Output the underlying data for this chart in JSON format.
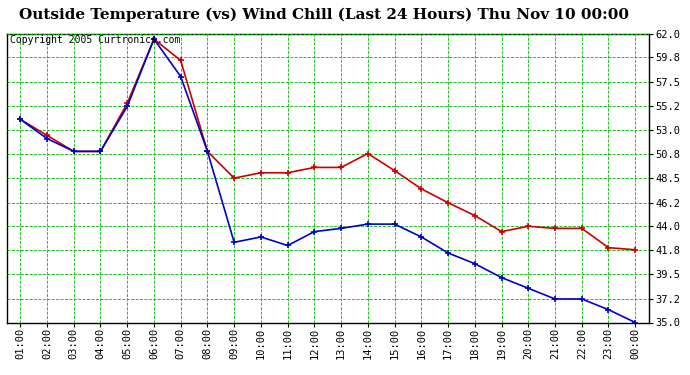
{
  "title": "Outside Temperature (vs) Wind Chill (Last 24 Hours) Thu Nov 10 00:00",
  "copyright": "Copyright 2005 Curtronics.com",
  "x_labels": [
    "01:00",
    "02:00",
    "03:00",
    "04:00",
    "05:00",
    "06:00",
    "07:00",
    "08:00",
    "09:00",
    "10:00",
    "11:00",
    "12:00",
    "13:00",
    "14:00",
    "15:00",
    "16:00",
    "17:00",
    "18:00",
    "19:00",
    "20:00",
    "21:00",
    "22:00",
    "23:00",
    "00:00"
  ],
  "outside_temp": [
    54.0,
    52.5,
    51.0,
    51.0,
    55.5,
    61.5,
    59.5,
    51.0,
    48.5,
    49.0,
    49.0,
    49.5,
    49.5,
    50.8,
    49.2,
    47.5,
    46.2,
    45.0,
    43.5,
    44.0,
    43.8,
    43.8,
    42.0,
    41.8
  ],
  "wind_chill": [
    54.0,
    52.2,
    51.0,
    51.0,
    55.2,
    61.5,
    58.0,
    51.0,
    42.5,
    43.0,
    42.2,
    43.5,
    43.8,
    44.2,
    44.2,
    43.0,
    41.5,
    40.5,
    39.2,
    38.2,
    37.2,
    37.2,
    36.2,
    35.0
  ],
  "ylim": [
    35.0,
    62.0
  ],
  "yticks": [
    35.0,
    37.2,
    39.5,
    41.8,
    44.0,
    46.2,
    48.5,
    50.8,
    53.0,
    55.2,
    57.5,
    59.8,
    62.0
  ],
  "bg_color": "#ffffff",
  "plot_bg_color": "#ffffff",
  "grid_color": "#00bb00",
  "title_color": "#000000",
  "red_color": "#cc0000",
  "blue_color": "#0000cc",
  "title_fontsize": 11,
  "tick_fontsize": 7.5,
  "copyright_fontsize": 7
}
